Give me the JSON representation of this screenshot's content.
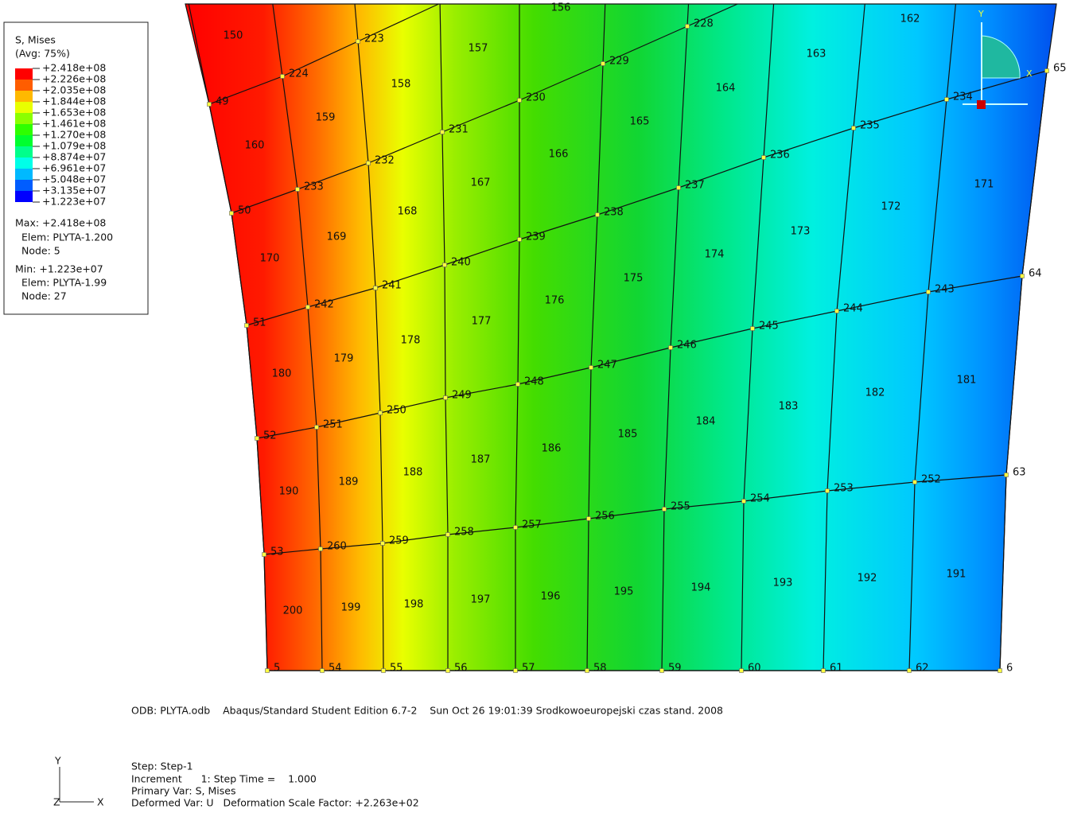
{
  "legend": {
    "title": "S, Mises",
    "subtitle": "(Avg: 75%)",
    "levels": [
      "+2.418e+08",
      "+2.226e+08",
      "+2.035e+08",
      "+1.844e+08",
      "+1.653e+08",
      "+1.461e+08",
      "+1.270e+08",
      "+1.079e+08",
      "+8.874e+07",
      "+6.961e+07",
      "+5.048e+07",
      "+3.135e+07",
      "+1.223e+07"
    ],
    "colors": [
      "#ff0000",
      "#ff5d00",
      "#ffb900",
      "#e9ff00",
      "#8bff00",
      "#2eff00",
      "#00ff2e",
      "#00ff8b",
      "#00ffe8",
      "#00b9ff",
      "#005dff",
      "#0000ff"
    ],
    "max": "Max: +2.418e+08",
    "max_elem": "Elem: PLYTA-1.200",
    "max_node": "Node: 5",
    "min": "Min: +1.223e+07",
    "min_elem": "Elem: PLYTA-1.99",
    "min_node": "Node: 27"
  },
  "elements": [
    "150",
    "156",
    "157",
    "162",
    "163",
    "158",
    "164",
    "159",
    "165",
    "160",
    "166",
    "167",
    "171",
    "172",
    "168",
    "173",
    "169",
    "174",
    "170",
    "175",
    "176",
    "177",
    "178",
    "179",
    "180",
    "181",
    "182",
    "183",
    "184",
    "185",
    "186",
    "187",
    "188",
    "189",
    "190",
    "191",
    "192",
    "193",
    "194",
    "195",
    "196",
    "197",
    "198",
    "199",
    "200"
  ],
  "nodes": [
    "5",
    "54",
    "55",
    "56",
    "57",
    "58",
    "59",
    "60",
    "61",
    "62",
    "6",
    "53",
    "260",
    "259",
    "258",
    "257",
    "256",
    "255",
    "254",
    "253",
    "252",
    "63",
    "52",
    "251",
    "250",
    "249",
    "248",
    "247",
    "246",
    "245",
    "244",
    "243",
    "64",
    "51",
    "242",
    "241",
    "240",
    "239",
    "238",
    "237",
    "236",
    "235",
    "234",
    "65",
    "50",
    "233",
    "232",
    "231",
    "230",
    "229",
    "228",
    "49",
    "224",
    "223"
  ],
  "footer": {
    "odb": "ODB: PLYTA.odb    Abaqus/Standard Student Edition 6.7-2    Sun Oct 26 19:01:39 Srodkowoeuropejski czas stand. 2008",
    "step": "Step: Step-1",
    "increment": "Increment      1: Step Time =    1.000",
    "primary": "Primary Var: S, Mises",
    "deformed": "Deformed Var: U   Deformation Scale Factor: +2.263e+02"
  },
  "triad": {
    "y": "Y",
    "z": "Z",
    "x": "X"
  },
  "view_triad": {
    "y": "Y",
    "x": "X"
  }
}
